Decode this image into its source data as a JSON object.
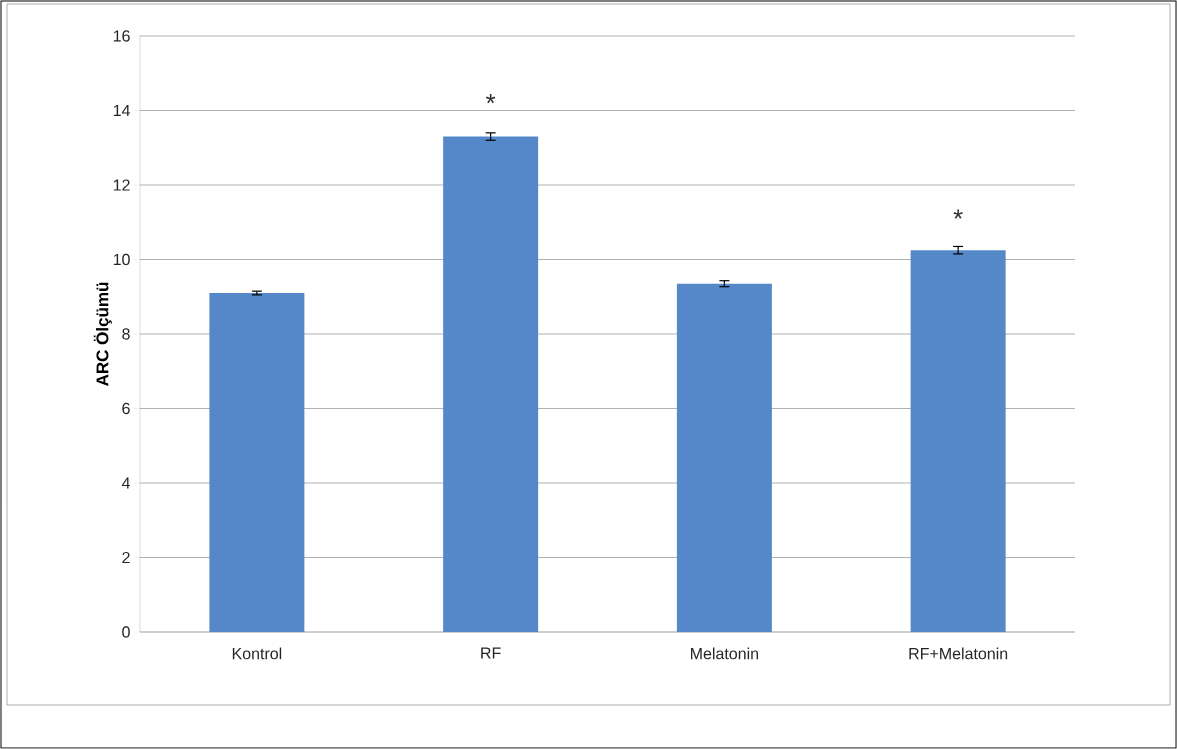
{
  "chart_data": {
    "type": "bar",
    "ylabel": "ARC Ölçümü",
    "categories": [
      "Kontrol",
      "RF",
      "Melatonin",
      "RF+Melatonin"
    ],
    "values": [
      9.1,
      13.3,
      9.35,
      10.25
    ],
    "errors": [
      0.05,
      0.1,
      0.08,
      0.1
    ],
    "color": "#5588c8",
    "ylim": [
      0,
      16
    ],
    "yticks": [
      0,
      2,
      4,
      6,
      8,
      10,
      12,
      14,
      16
    ],
    "grid": "y",
    "annotations": [
      "*",
      "*"
    ]
  }
}
